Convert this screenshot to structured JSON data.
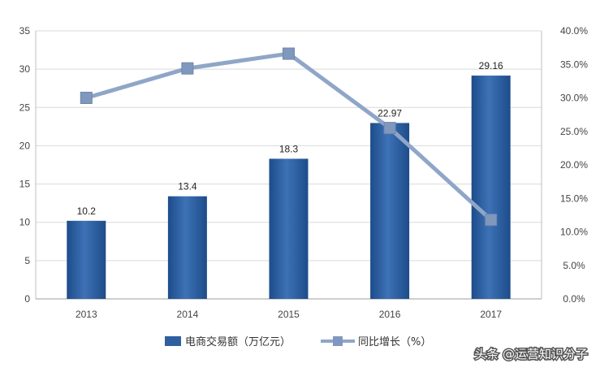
{
  "chart_data": {
    "type": "bar",
    "categories": [
      "2013",
      "2014",
      "2015",
      "2016",
      "2017"
    ],
    "series": [
      {
        "name": "电商交易额（万亿元）",
        "type": "bar",
        "axis": "left",
        "values": [
          10.2,
          13.4,
          18.3,
          22.97,
          29.16
        ],
        "labels": [
          "10.2",
          "13.4",
          "18.3",
          "22.97",
          "29.16"
        ],
        "color": "#2f5f9f"
      },
      {
        "name": "同比增长（%）",
        "type": "line",
        "axis": "right",
        "values": [
          0.3,
          0.344,
          0.366,
          0.255,
          0.118
        ],
        "color": "#8fa6c8"
      }
    ],
    "ylim_left": [
      0,
      35
    ],
    "yticks_left": [
      "0",
      "5",
      "10",
      "15",
      "20",
      "25",
      "30",
      "35"
    ],
    "ylim_right": [
      0,
      0.4
    ],
    "yticks_right": [
      "0.0%",
      "5.0%",
      "10.0%",
      "15.0%",
      "20.0%",
      "25.0%",
      "30.0%",
      "35.0%",
      "40.0%"
    ],
    "grid": true,
    "legend_position": "bottom"
  },
  "watermark": {
    "publisher_text": "头条 @运营知识分子"
  }
}
